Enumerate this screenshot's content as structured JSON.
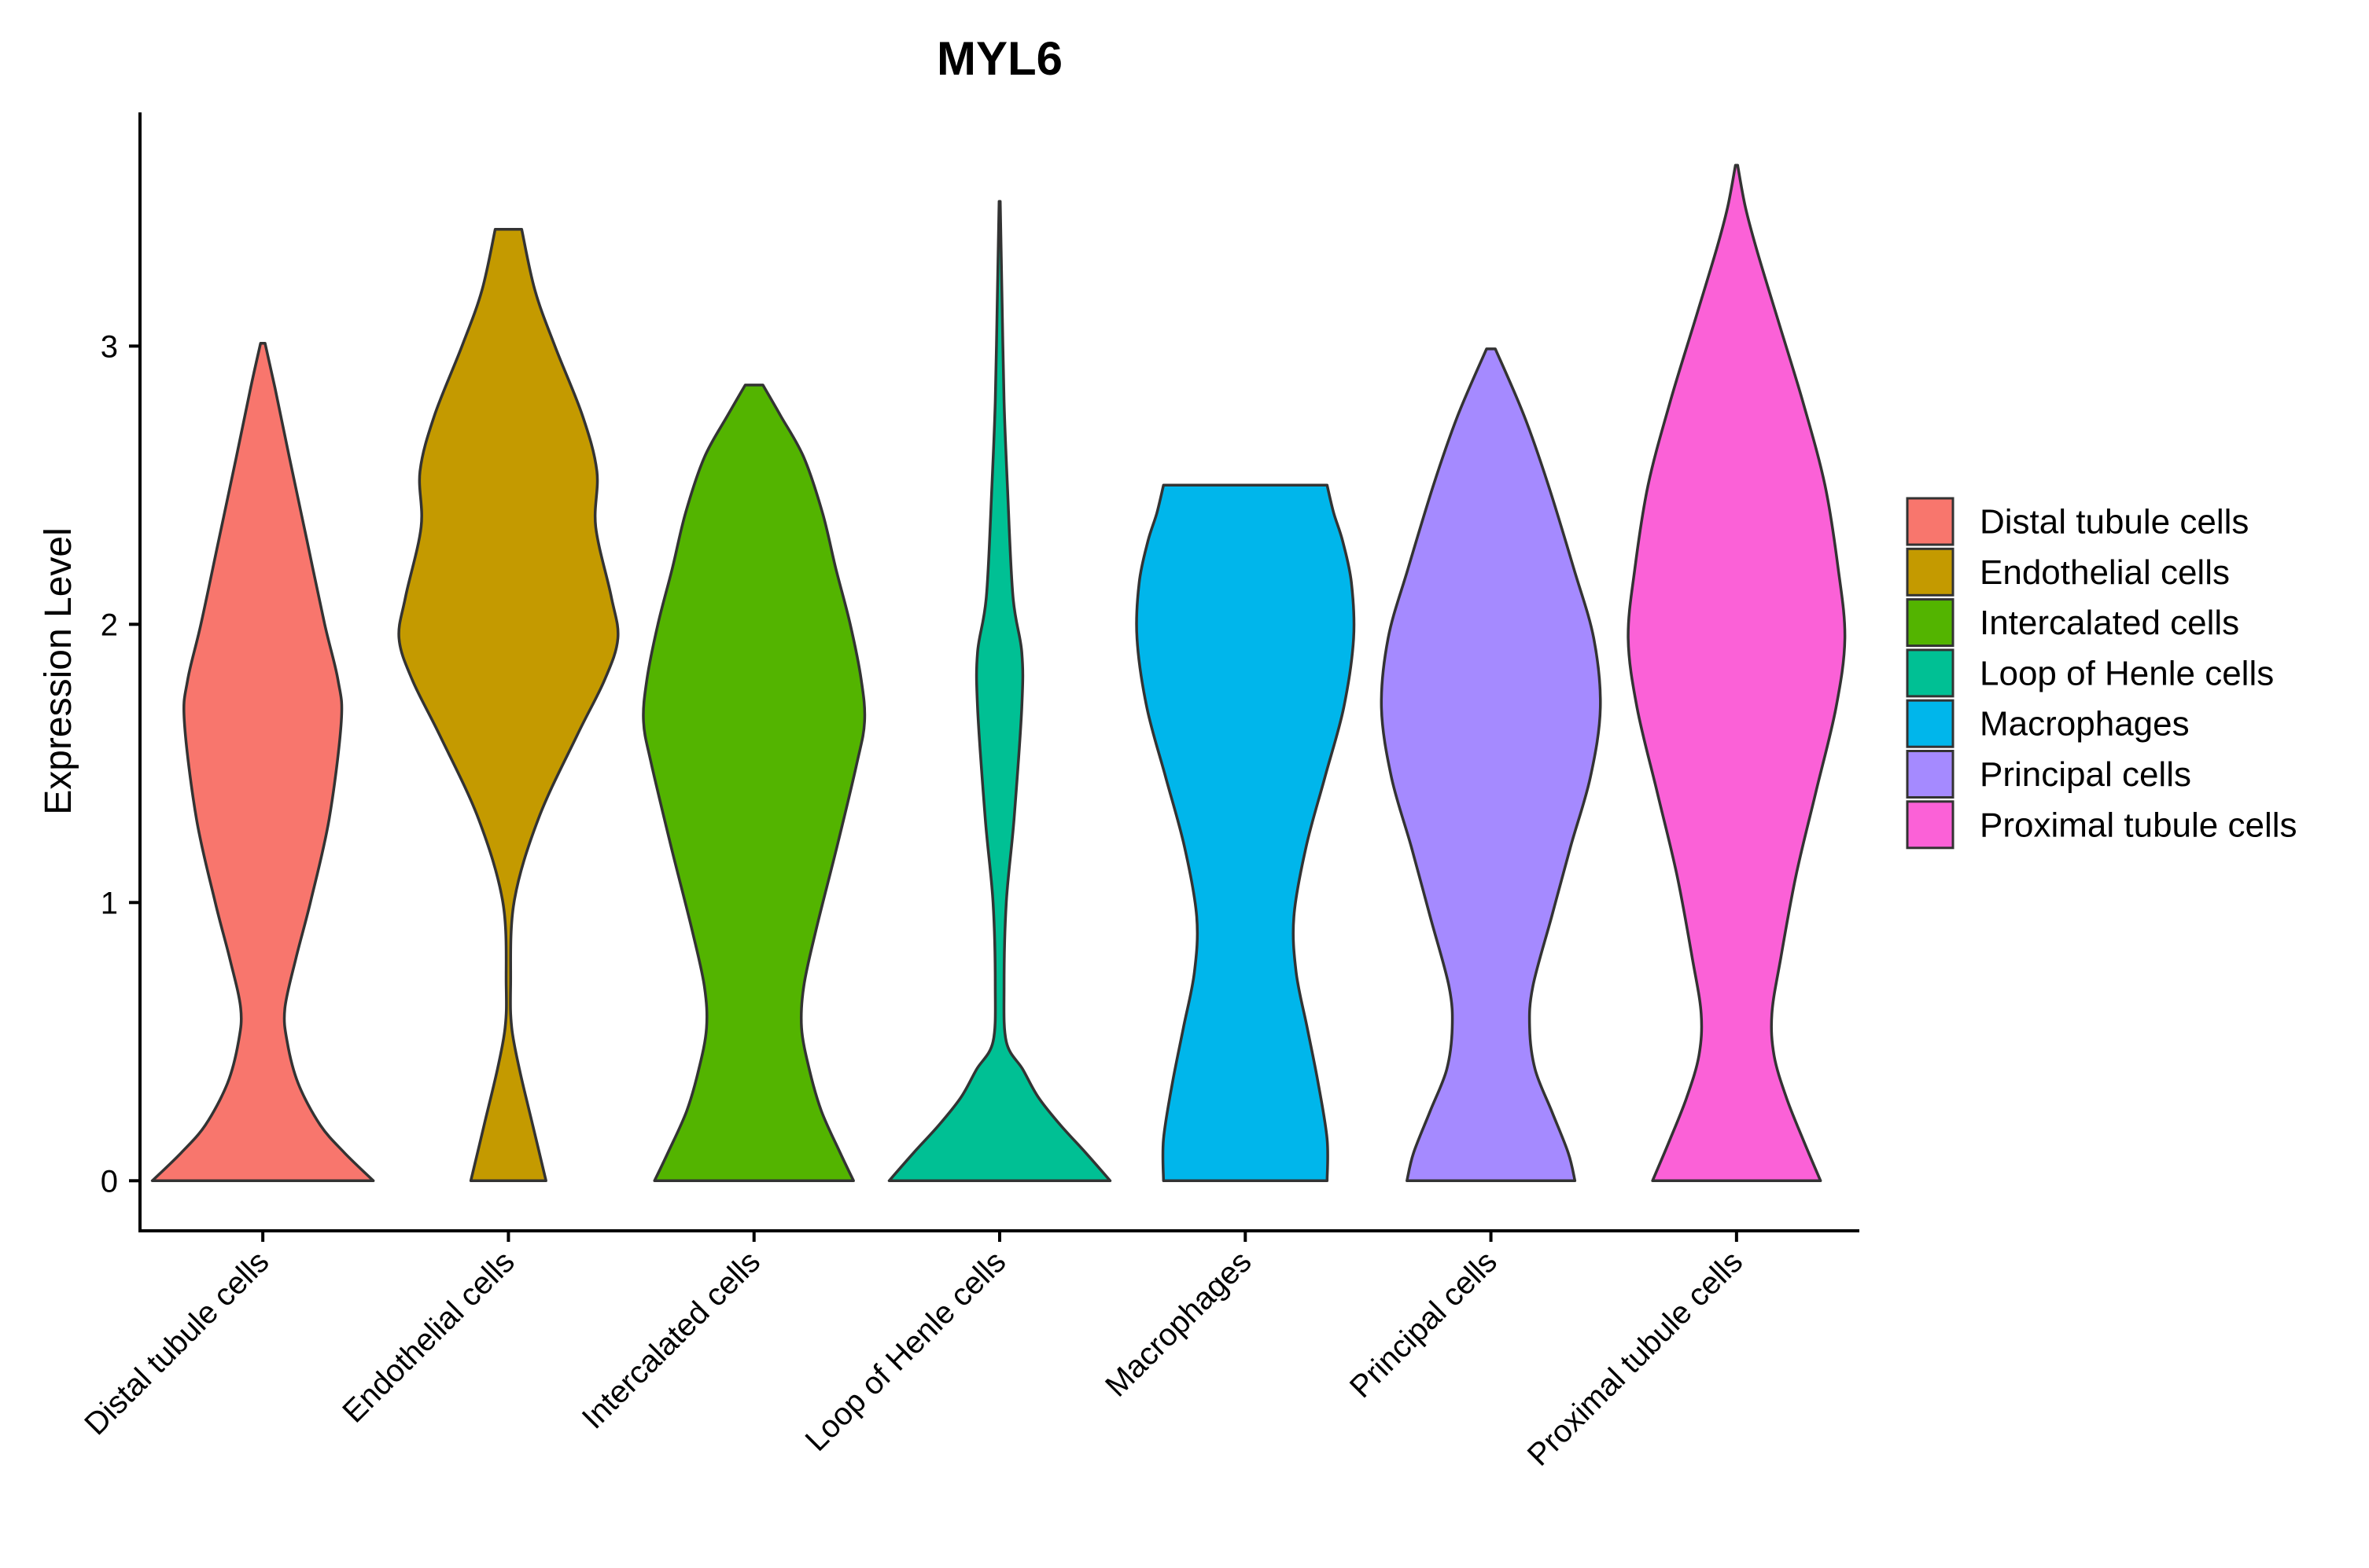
{
  "chart_data": {
    "type": "violin",
    "title": "MYL6",
    "xlabel": "",
    "ylabel": "Expression Level",
    "ylim": [
      -0.18,
      3.84
    ],
    "yticks": [
      0,
      1,
      2,
      3
    ],
    "grid": false,
    "legend": {
      "position": "right"
    },
    "categories": [
      "Distal tubule cells",
      "Endothelial cells",
      "Intercalated cells",
      "Loop of Henle cells",
      "Macrophages",
      "Principal cells",
      "Proximal tubule cells"
    ],
    "series": [
      {
        "name": "Distal tubule cells",
        "color": "#F8766D",
        "max": 3.01,
        "profile": [
          [
            0,
            1.0
          ],
          [
            0.1,
            0.74
          ],
          [
            0.2,
            0.52
          ],
          [
            0.35,
            0.32
          ],
          [
            0.5,
            0.22
          ],
          [
            0.62,
            0.2
          ],
          [
            0.8,
            0.3
          ],
          [
            1.0,
            0.43
          ],
          [
            1.3,
            0.6
          ],
          [
            1.65,
            0.71
          ],
          [
            1.8,
            0.68
          ],
          [
            2.0,
            0.56
          ],
          [
            2.3,
            0.4
          ],
          [
            2.6,
            0.24
          ],
          [
            2.85,
            0.11
          ],
          [
            3.01,
            0.02
          ]
        ]
      },
      {
        "name": "Endothelial cells",
        "color": "#C49A00",
        "max": 3.42,
        "profile": [
          [
            0,
            0.34
          ],
          [
            0.2,
            0.22
          ],
          [
            0.4,
            0.1
          ],
          [
            0.55,
            0.03
          ],
          [
            0.7,
            0.02
          ],
          [
            1.0,
            0.05
          ],
          [
            1.3,
            0.27
          ],
          [
            1.6,
            0.62
          ],
          [
            1.8,
            0.87
          ],
          [
            1.95,
            0.99
          ],
          [
            2.1,
            0.93
          ],
          [
            2.35,
            0.79
          ],
          [
            2.55,
            0.8
          ],
          [
            2.75,
            0.67
          ],
          [
            3.0,
            0.42
          ],
          [
            3.2,
            0.24
          ],
          [
            3.42,
            0.12
          ]
        ]
      },
      {
        "name": "Intercalated cells",
        "color": "#53B400",
        "max": 2.86,
        "profile": [
          [
            0,
            0.9
          ],
          [
            0.1,
            0.78
          ],
          [
            0.25,
            0.61
          ],
          [
            0.4,
            0.5
          ],
          [
            0.55,
            0.43
          ],
          [
            0.7,
            0.45
          ],
          [
            0.9,
            0.56
          ],
          [
            1.2,
            0.75
          ],
          [
            1.5,
            0.93
          ],
          [
            1.65,
            1.0
          ],
          [
            1.8,
            0.97
          ],
          [
            2.0,
            0.87
          ],
          [
            2.2,
            0.74
          ],
          [
            2.4,
            0.62
          ],
          [
            2.6,
            0.45
          ],
          [
            2.75,
            0.24
          ],
          [
            2.86,
            0.08
          ]
        ]
      },
      {
        "name": "Loop of Henle cells",
        "color": "#00C094",
        "max": 3.52,
        "profile": [
          [
            0,
            1.0
          ],
          [
            0.1,
            0.78
          ],
          [
            0.2,
            0.55
          ],
          [
            0.3,
            0.35
          ],
          [
            0.4,
            0.21
          ],
          [
            0.5,
            0.06
          ],
          [
            0.7,
            0.04
          ],
          [
            1.0,
            0.06
          ],
          [
            1.3,
            0.13
          ],
          [
            1.7,
            0.2
          ],
          [
            1.9,
            0.2
          ],
          [
            2.1,
            0.12
          ],
          [
            2.5,
            0.07
          ],
          [
            2.8,
            0.04
          ],
          [
            3.2,
            0.02
          ],
          [
            3.52,
            0.005
          ]
        ]
      },
      {
        "name": "Macrophages",
        "color": "#00B6EB",
        "max": 2.5,
        "profile": [
          [
            0,
            0.74
          ],
          [
            0.15,
            0.74
          ],
          [
            0.35,
            0.66
          ],
          [
            0.55,
            0.56
          ],
          [
            0.75,
            0.46
          ],
          [
            0.95,
            0.44
          ],
          [
            1.2,
            0.55
          ],
          [
            1.45,
            0.72
          ],
          [
            1.7,
            0.89
          ],
          [
            1.95,
            0.98
          ],
          [
            2.15,
            0.96
          ],
          [
            2.3,
            0.88
          ],
          [
            2.4,
            0.8
          ],
          [
            2.5,
            0.74
          ]
        ]
      },
      {
        "name": "Principal cells",
        "color": "#A58AFF",
        "max": 2.99,
        "profile": [
          [
            0,
            0.76
          ],
          [
            0.1,
            0.7
          ],
          [
            0.25,
            0.55
          ],
          [
            0.4,
            0.4
          ],
          [
            0.55,
            0.35
          ],
          [
            0.7,
            0.38
          ],
          [
            0.95,
            0.55
          ],
          [
            1.2,
            0.72
          ],
          [
            1.45,
            0.9
          ],
          [
            1.7,
            0.99
          ],
          [
            1.95,
            0.93
          ],
          [
            2.2,
            0.75
          ],
          [
            2.5,
            0.52
          ],
          [
            2.75,
            0.3
          ],
          [
            2.99,
            0.04
          ]
        ]
      },
      {
        "name": "Proximal tubule cells",
        "color": "#FB61D7",
        "max": 3.65,
        "profile": [
          [
            0,
            0.76
          ],
          [
            0.15,
            0.6
          ],
          [
            0.3,
            0.45
          ],
          [
            0.45,
            0.34
          ],
          [
            0.6,
            0.32
          ],
          [
            0.8,
            0.4
          ],
          [
            1.1,
            0.54
          ],
          [
            1.4,
            0.72
          ],
          [
            1.7,
            0.9
          ],
          [
            1.95,
            0.98
          ],
          [
            2.2,
            0.92
          ],
          [
            2.5,
            0.8
          ],
          [
            2.8,
            0.6
          ],
          [
            3.1,
            0.37
          ],
          [
            3.35,
            0.18
          ],
          [
            3.5,
            0.08
          ],
          [
            3.65,
            0.01
          ]
        ]
      }
    ]
  }
}
